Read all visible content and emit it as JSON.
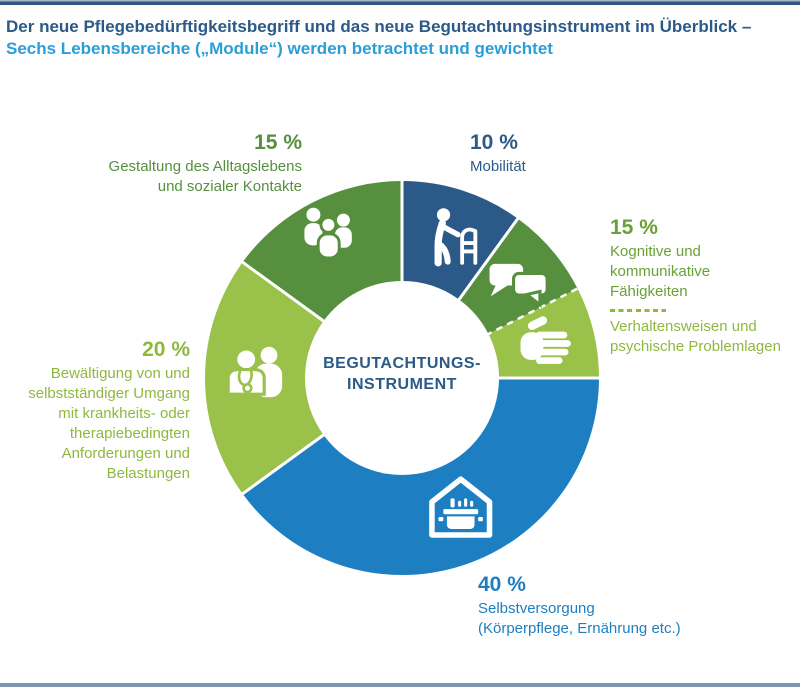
{
  "header": {
    "title_line1": "Der neue Pflegebedürftigkeitsbegriff und das neue Begutachtungsinstrument im Überblick –",
    "title_line2": "Sechs Lebensbereiche („Module“) werden betrachtet und gewichtet"
  },
  "center_label": {
    "line1": "BEGUTACHTUNGS-",
    "line2": "INSTRUMENT"
  },
  "colors": {
    "navy": "#2b5a89",
    "blue": "#1d7fc1",
    "green_dark": "#56903e",
    "green_lime": "#9ac14a",
    "text_green_mid": "#69a136",
    "text_green_lime": "#8fb83f",
    "title_blue": "#299fda",
    "rule_top": "#31567f",
    "rule_bottom": "#7e97b1"
  },
  "callouts": {
    "gestaltung": {
      "pct": "15 %",
      "lines": [
        "Gestaltung des Alltagslebens",
        "und sozialer Kontakte"
      ]
    },
    "mobilitaet": {
      "pct": "10 %",
      "lines": [
        "Mobilität"
      ]
    },
    "kognitiv_verhalten": {
      "pct": "15 %",
      "lines1": [
        "Kognitive und kommunikative",
        "Fähigkeiten"
      ],
      "lines2": [
        "Verhaltensweisen und",
        "psychische Problemlagen"
      ]
    },
    "bewaeltigung": {
      "pct": "20 %",
      "lines": [
        "Bewältigung von und",
        "selbstständiger Umgang",
        "mit krankheits- oder",
        "therapiebedingten",
        "Anforderungen und",
        "Belastungen"
      ]
    },
    "selbstversorgung": {
      "pct": "40 %",
      "lines": [
        "Selbstversorgung",
        "(Körperpflege, Ernährung etc.)"
      ]
    }
  },
  "chart_data": {
    "type": "pie",
    "variant": "donut",
    "title": "Begutachtungsinstrument – Gewichtung der sechs Lebensbereiche (Module)",
    "center_label": "BEGUTACHTUNGS-INSTRUMENT",
    "start_angle_deg": 0,
    "direction": "clockwise",
    "units": "%",
    "segments": [
      {
        "id": "mobilitaet",
        "label": "Mobilität",
        "weight_pct": 10,
        "arc_value": 10,
        "color": "#2b5a89",
        "icon": "walker-icon"
      },
      {
        "id": "kognitiv",
        "label": "Kognitive und kommunikative Fähigkeiten",
        "weight_pct": 15,
        "arc_value": 7.5,
        "color": "#56903e",
        "icon": "speech-bubbles-icon",
        "dashed_boundary_after": true
      },
      {
        "id": "verhalten",
        "label": "Verhaltensweisen und psychische Problemlagen",
        "weight_pct": 15,
        "arc_value": 7.5,
        "color": "#9ac14a",
        "icon": "hand-icon"
      },
      {
        "id": "selbstversorgung",
        "label": "Selbstversorgung (Körperpflege, Ernährung etc.)",
        "weight_pct": 40,
        "arc_value": 40,
        "color": "#1d7fc1",
        "icon": "house-cooking-pot-icon"
      },
      {
        "id": "bewaeltigung",
        "label": "Bewältigung von und selbstständiger Umgang mit krankheits- oder therapiebedingten Anforderungen und Belastungen",
        "weight_pct": 20,
        "arc_value": 20,
        "color": "#9ac14a",
        "icon": "doctor-patient-icon"
      },
      {
        "id": "gestaltung",
        "label": "Gestaltung des Alltagslebens und sozialer Kontakte",
        "weight_pct": 15,
        "arc_value": 15,
        "color": "#56903e",
        "icon": "people-group-icon"
      }
    ]
  }
}
